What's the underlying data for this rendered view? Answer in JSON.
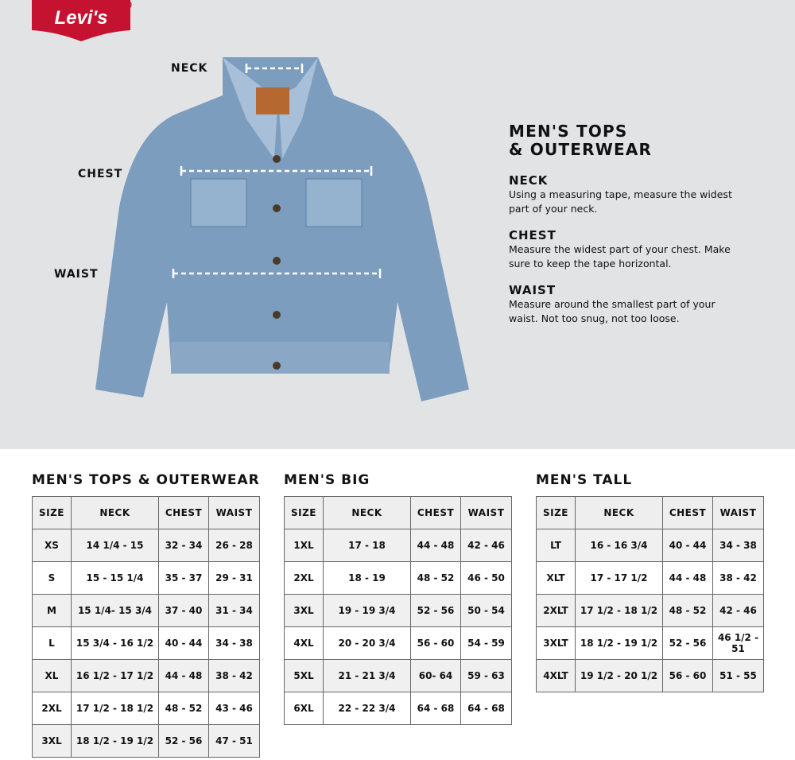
{
  "brand": {
    "logo_text": "Levi's",
    "color": "#c41230"
  },
  "diagram": {
    "labels": [
      "NECK",
      "CHEST",
      "WAIST"
    ]
  },
  "info": {
    "title_line1": "MEN'S TOPS",
    "title_line2": "& OUTERWEAR",
    "sections": [
      {
        "heading": "NECK",
        "text": "Using a measuring tape, measure the widest part of your neck."
      },
      {
        "heading": "CHEST",
        "text": "Measure the widest part of your chest. Make sure to keep the tape horizontal."
      },
      {
        "heading": "WAIST",
        "text": "Measure around the smallest part of your waist. Not too snug, not too loose."
      }
    ]
  },
  "tables": [
    {
      "title": "MEN'S TOPS & OUTERWEAR",
      "headers": [
        "SIZE",
        "NECK",
        "CHEST",
        "WAIST"
      ],
      "rows": [
        [
          "XS",
          "14 1/4 - 15",
          "32 - 34",
          "26 - 28"
        ],
        [
          "S",
          "15 - 15 1/4",
          "35 - 37",
          "29 - 31"
        ],
        [
          "M",
          "15 1/4- 15 3/4",
          "37 - 40",
          "31 - 34"
        ],
        [
          "L",
          "15 3/4 - 16 1/2",
          "40 - 44",
          "34 - 38"
        ],
        [
          "XL",
          "16 1/2 - 17 1/2",
          "44 - 48",
          "38 - 42"
        ],
        [
          "2XL",
          "17 1/2 - 18 1/2",
          "48 - 52",
          "43 - 46"
        ],
        [
          "3XL",
          "18 1/2 - 19 1/2",
          "52 - 56",
          "47 - 51"
        ]
      ]
    },
    {
      "title": "MEN'S BIG",
      "headers": [
        "SIZE",
        "NECK",
        "CHEST",
        "WAIST"
      ],
      "rows": [
        [
          "1XL",
          "17 - 18",
          "44 - 48",
          "42 - 46"
        ],
        [
          "2XL",
          "18 - 19",
          "48 - 52",
          "46 - 50"
        ],
        [
          "3XL",
          "19 - 19 3/4",
          "52 - 56",
          "50 - 54"
        ],
        [
          "4XL",
          "20 - 20 3/4",
          "56 - 60",
          "54 - 59"
        ],
        [
          "5XL",
          "21 - 21 3/4",
          "60- 64",
          "59 - 63"
        ],
        [
          "6XL",
          "22 - 22 3/4",
          "64 - 68",
          "64 - 68"
        ]
      ]
    },
    {
      "title": "MEN'S TALL",
      "headers": [
        "SIZE",
        "NECK",
        "CHEST",
        "WAIST"
      ],
      "rows": [
        [
          "LT",
          "16 - 16 3/4",
          "40 - 44",
          "34 - 38"
        ],
        [
          "XLT",
          "17 - 17 1/2",
          "44 - 48",
          "38 - 42"
        ],
        [
          "2XLT",
          "17 1/2 - 18 1/2",
          "48 - 52",
          "42 - 46"
        ],
        [
          "3XLT",
          "18 1/2 - 19 1/2",
          "52 - 56",
          "46 1/2 - 51"
        ],
        [
          "4XLT",
          "19 1/2 - 20 1/2",
          "56 - 60",
          "51 - 55"
        ]
      ]
    }
  ]
}
